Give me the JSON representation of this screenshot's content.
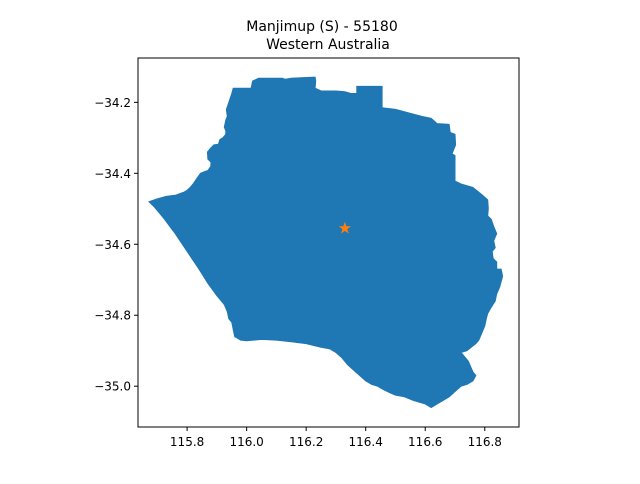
{
  "title_line1": "Manjimup (S) - 55180",
  "title_line2": "Western Australia",
  "colors": {
    "region_fill": "#1f77b4",
    "marker": "#ff7f0e",
    "axes": "#000000"
  },
  "map": {
    "xlim": [
      115.635,
      116.915
    ],
    "ylim": [
      -35.115,
      -34.075
    ],
    "x_ticks": [
      115.8,
      116.0,
      116.2,
      116.4,
      116.6,
      116.8
    ],
    "x_tick_labels": [
      "115.8",
      "116.0",
      "116.2",
      "116.4",
      "116.6",
      "116.8"
    ],
    "y_ticks": [
      -34.2,
      -34.4,
      -34.6,
      -34.8,
      -35.0
    ],
    "y_tick_labels": [
      "−34.2",
      "−34.4",
      "−34.6",
      "−34.8",
      "−35.0"
    ],
    "marker": {
      "lon": 116.33,
      "lat": -34.555,
      "symbol": "star"
    },
    "boundary": [
      [
        115.672,
        -34.48
      ],
      [
        115.7,
        -34.472
      ],
      [
        115.73,
        -34.465
      ],
      [
        115.76,
        -34.462
      ],
      [
        115.79,
        -34.453
      ],
      [
        115.8,
        -34.448
      ],
      [
        115.81,
        -34.44
      ],
      [
        115.82,
        -34.43
      ],
      [
        115.83,
        -34.418
      ],
      [
        115.845,
        -34.4
      ],
      [
        115.86,
        -34.395
      ],
      [
        115.87,
        -34.392
      ],
      [
        115.88,
        -34.38
      ],
      [
        115.88,
        -34.368
      ],
      [
        115.87,
        -34.36
      ],
      [
        115.868,
        -34.34
      ],
      [
        115.88,
        -34.328
      ],
      [
        115.89,
        -34.32
      ],
      [
        115.905,
        -34.318
      ],
      [
        115.91,
        -34.305
      ],
      [
        115.92,
        -34.3
      ],
      [
        115.93,
        -34.29
      ],
      [
        115.93,
        -34.28
      ],
      [
        115.925,
        -34.27
      ],
      [
        115.93,
        -34.25
      ],
      [
        115.935,
        -34.24
      ],
      [
        115.932,
        -34.22
      ],
      [
        115.94,
        -34.2
      ],
      [
        115.95,
        -34.175
      ],
      [
        115.955,
        -34.16
      ],
      [
        116.015,
        -34.16
      ],
      [
        116.02,
        -34.14
      ],
      [
        116.04,
        -34.132
      ],
      [
        116.12,
        -34.132
      ],
      [
        116.13,
        -34.135
      ],
      [
        116.15,
        -34.132
      ],
      [
        116.2,
        -34.13
      ],
      [
        116.23,
        -34.129
      ],
      [
        116.232,
        -34.14
      ],
      [
        116.23,
        -34.16
      ],
      [
        116.25,
        -34.168
      ],
      [
        116.3,
        -34.168
      ],
      [
        116.33,
        -34.17
      ],
      [
        116.35,
        -34.175
      ],
      [
        116.37,
        -34.175
      ],
      [
        116.37,
        -34.155
      ],
      [
        116.455,
        -34.155
      ],
      [
        116.455,
        -34.215
      ],
      [
        116.5,
        -34.22
      ],
      [
        116.545,
        -34.23
      ],
      [
        116.59,
        -34.24
      ],
      [
        116.62,
        -34.245
      ],
      [
        116.64,
        -34.26
      ],
      [
        116.68,
        -34.262
      ],
      [
        116.684,
        -34.285
      ],
      [
        116.7,
        -34.29
      ],
      [
        116.702,
        -34.32
      ],
      [
        116.69,
        -34.345
      ],
      [
        116.7,
        -34.35
      ],
      [
        116.7,
        -34.422
      ],
      [
        116.72,
        -34.43
      ],
      [
        116.76,
        -34.44
      ],
      [
        116.79,
        -34.46
      ],
      [
        116.81,
        -34.475
      ],
      [
        116.812,
        -34.5
      ],
      [
        116.81,
        -34.52
      ],
      [
        116.822,
        -34.53
      ],
      [
        116.83,
        -34.55
      ],
      [
        116.84,
        -34.57
      ],
      [
        116.83,
        -34.59
      ],
      [
        116.835,
        -34.61
      ],
      [
        116.825,
        -34.62
      ],
      [
        116.828,
        -34.64
      ],
      [
        116.84,
        -34.65
      ],
      [
        116.84,
        -34.67
      ],
      [
        116.855,
        -34.67
      ],
      [
        116.86,
        -34.69
      ],
      [
        116.85,
        -34.72
      ],
      [
        116.84,
        -34.74
      ],
      [
        116.835,
        -34.76
      ],
      [
        116.82,
        -34.78
      ],
      [
        116.81,
        -34.795
      ],
      [
        116.805,
        -34.81
      ],
      [
        116.8,
        -34.83
      ],
      [
        116.79,
        -34.85
      ],
      [
        116.78,
        -34.87
      ],
      [
        116.77,
        -34.88
      ],
      [
        116.74,
        -34.9
      ],
      [
        116.72,
        -34.905
      ],
      [
        116.73,
        -34.915
      ],
      [
        116.745,
        -34.93
      ],
      [
        116.755,
        -34.95
      ],
      [
        116.76,
        -34.96
      ],
      [
        116.77,
        -34.97
      ],
      [
        116.76,
        -34.985
      ],
      [
        116.74,
        -34.995
      ],
      [
        116.72,
        -35.0
      ],
      [
        116.7,
        -35.015
      ],
      [
        116.68,
        -35.03
      ],
      [
        116.66,
        -35.04
      ],
      [
        116.64,
        -35.05
      ],
      [
        116.62,
        -35.06
      ],
      [
        116.6,
        -35.05
      ],
      [
        116.56,
        -35.04
      ],
      [
        116.53,
        -35.03
      ],
      [
        116.5,
        -35.025
      ],
      [
        116.48,
        -35.018
      ],
      [
        116.46,
        -35.01
      ],
      [
        116.44,
        -35.0
      ],
      [
        116.42,
        -34.995
      ],
      [
        116.4,
        -34.985
      ],
      [
        116.38,
        -34.97
      ],
      [
        116.36,
        -34.955
      ],
      [
        116.34,
        -34.94
      ],
      [
        116.32,
        -34.92
      ],
      [
        116.3,
        -34.905
      ],
      [
        116.28,
        -34.895
      ],
      [
        116.25,
        -34.89
      ],
      [
        116.2,
        -34.88
      ],
      [
        116.15,
        -34.875
      ],
      [
        116.1,
        -34.87
      ],
      [
        116.05,
        -34.868
      ],
      [
        116.0,
        -34.872
      ],
      [
        115.98,
        -34.87
      ],
      [
        115.96,
        -34.86
      ],
      [
        115.955,
        -34.84
      ],
      [
        115.95,
        -34.82
      ],
      [
        115.94,
        -34.81
      ],
      [
        115.935,
        -34.79
      ],
      [
        115.925,
        -34.77
      ],
      [
        115.9,
        -34.745
      ],
      [
        115.87,
        -34.71
      ],
      [
        115.84,
        -34.67
      ],
      [
        115.8,
        -34.62
      ],
      [
        115.76,
        -34.57
      ],
      [
        115.72,
        -34.525
      ],
      [
        115.69,
        -34.495
      ],
      [
        115.672,
        -34.48
      ]
    ]
  }
}
